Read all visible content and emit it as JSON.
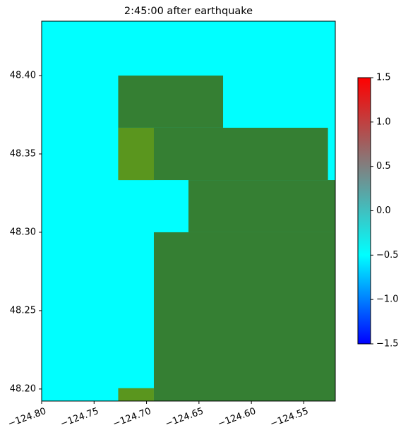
{
  "chart_data": {
    "type": "raster",
    "title": "2:45:00 after earthquake",
    "background_color": "#00ffff",
    "xlim": [
      -124.8,
      -124.52
    ],
    "ylim": [
      48.1923,
      48.4347
    ],
    "xticks": [
      {
        "value": -124.8,
        "label": "−124.80"
      },
      {
        "value": -124.75,
        "label": "−124.75"
      },
      {
        "value": -124.7,
        "label": "−124.70"
      },
      {
        "value": -124.65,
        "label": "−124.65"
      },
      {
        "value": -124.6,
        "label": "−124.60"
      },
      {
        "value": -124.55,
        "label": "−124.55"
      }
    ],
    "yticks": [
      {
        "value": 48.2,
        "label": "48.20"
      },
      {
        "value": 48.25,
        "label": "48.25"
      },
      {
        "value": 48.3,
        "label": "48.30"
      },
      {
        "value": 48.35,
        "label": "48.35"
      },
      {
        "value": 48.4,
        "label": "48.40"
      }
    ],
    "cells": [
      {
        "lon": [
          -124.727,
          -124.627
        ],
        "lat": [
          48.3667,
          48.4
        ],
        "color": "#357f33"
      },
      {
        "lon": [
          -124.727,
          -124.527
        ],
        "lat": [
          48.3333,
          48.3667
        ],
        "color": "#357f33"
      },
      {
        "lon": [
          -124.66,
          -124.52
        ],
        "lat": [
          48.3,
          48.3333
        ],
        "color": "#357f33"
      },
      {
        "lon": [
          -124.693,
          -124.52
        ],
        "lat": [
          48.1923,
          48.3
        ],
        "color": "#357f33"
      },
      {
        "lon": [
          -124.727,
          -124.693
        ],
        "lat": [
          48.3333,
          48.3667
        ],
        "color": "#5a961e"
      },
      {
        "lon": [
          -124.727,
          -124.693
        ],
        "lat": [
          48.1923,
          48.2005
        ],
        "color": "#5a961e"
      }
    ],
    "colorbar": {
      "clim": [
        -1.5,
        1.5
      ],
      "colors": [
        "#0000ff",
        "#00ffff",
        "#808080",
        "#ff0000"
      ],
      "ticks": [
        {
          "value": -1.5,
          "label": "−1.5"
        },
        {
          "value": -1.0,
          "label": "−1.0"
        },
        {
          "value": -0.5,
          "label": "−0.5"
        },
        {
          "value": 0,
          "label": "0.0"
        },
        {
          "value": 0.5,
          "label": "0.5"
        },
        {
          "value": 1.0,
          "label": "1.0"
        },
        1.5
      ]
    }
  }
}
